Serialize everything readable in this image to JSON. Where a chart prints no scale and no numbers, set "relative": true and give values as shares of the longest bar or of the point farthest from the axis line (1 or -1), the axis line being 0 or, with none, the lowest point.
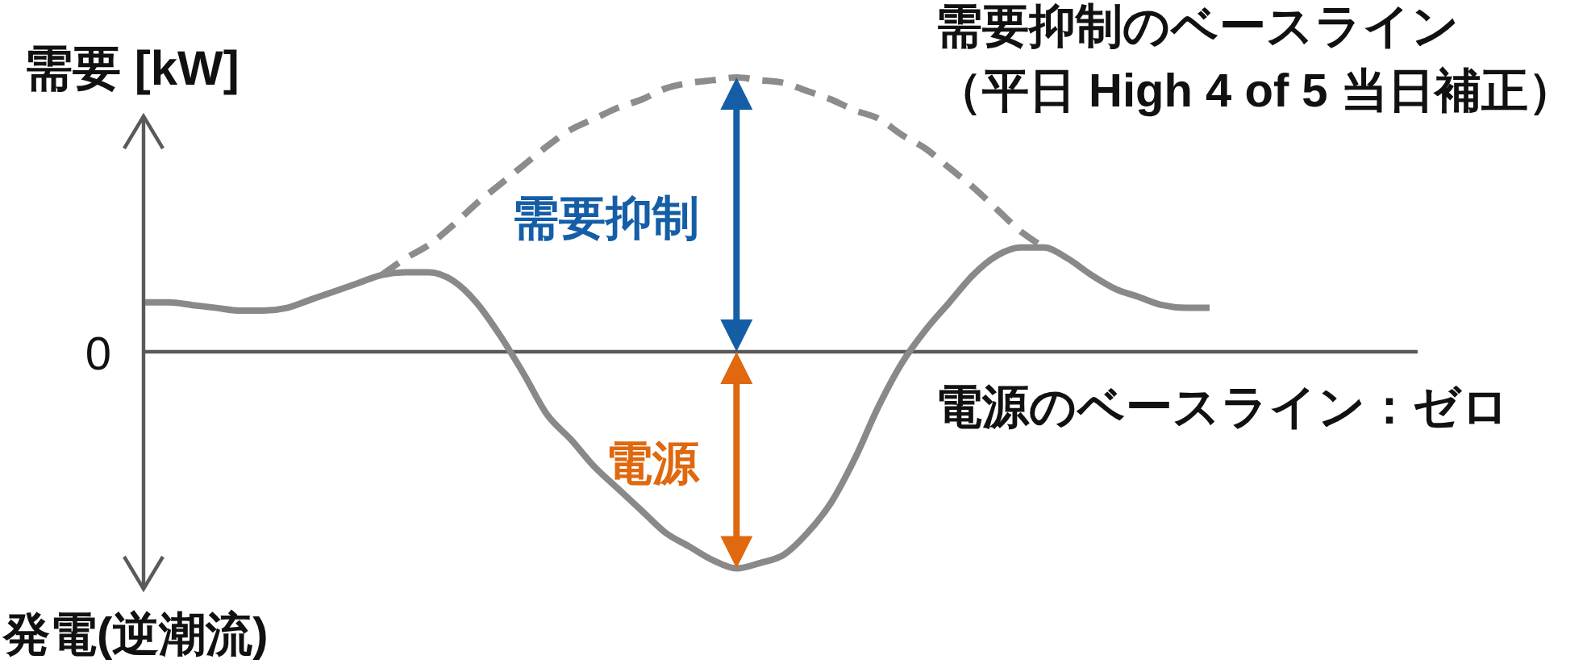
{
  "chart_data": {
    "type": "line",
    "relative": true,
    "ylabel": "需要 [kW]",
    "categories": [
      null,
      null,
      null,
      null,
      null,
      null,
      null,
      null,
      null,
      null,
      null,
      null,
      null,
      null,
      null,
      null,
      null,
      null,
      null,
      null,
      null,
      null,
      null,
      null,
      null,
      null,
      null,
      null,
      null,
      null,
      null,
      null,
      null,
      null,
      null,
      null,
      null,
      null,
      null,
      null,
      null,
      null,
      null,
      null,
      null,
      null
    ],
    "series": [
      {
        "color": "#898989",
        "line_style": "solid",
        "values": [
          0.18,
          0.18,
          0.17,
          0.16,
          0.15,
          0.15,
          0.16,
          0.19,
          0.22,
          0.25,
          0.28,
          0.29,
          0.29,
          0.26,
          0.18,
          0.06,
          -0.08,
          -0.23,
          -0.32,
          -0.42,
          -0.5,
          -0.58,
          -0.66,
          -0.71,
          -0.76,
          -0.79,
          -0.77,
          -0.74,
          -0.66,
          -0.55,
          -0.39,
          -0.2,
          -0.04,
          0.08,
          0.18,
          0.28,
          0.35,
          0.38,
          0.38,
          0.34,
          0.28,
          0.23,
          0.2,
          0.17,
          0.16,
          0.16
        ]
      },
      {
        "name": "需要抑制のベースライン（平日 High 4 of 5 当日補正）",
        "color": "#8c8c8c",
        "line_style": "dashed",
        "values": [
          null,
          null,
          null,
          null,
          null,
          null,
          null,
          null,
          null,
          null,
          0.28,
          0.34,
          0.39,
          0.46,
          0.54,
          0.61,
          0.68,
          0.75,
          0.81,
          0.85,
          0.89,
          0.92,
          0.96,
          0.98,
          0.99,
          1,
          0.99,
          0.98,
          0.95,
          0.92,
          0.88,
          0.85,
          0.79,
          0.74,
          0.67,
          0.6,
          0.52,
          0.44,
          0.38,
          null,
          null,
          null,
          null,
          null,
          null,
          null
        ]
      }
    ],
    "ref_lines": [
      {
        "axis": "y",
        "value": 0,
        "label": "電源のベースライン：ゼロ",
        "color": "#5a5a5a"
      }
    ],
    "annotations": [
      "需要抑制",
      "電源",
      "0",
      "発電(逆潮流)"
    ]
  }
}
